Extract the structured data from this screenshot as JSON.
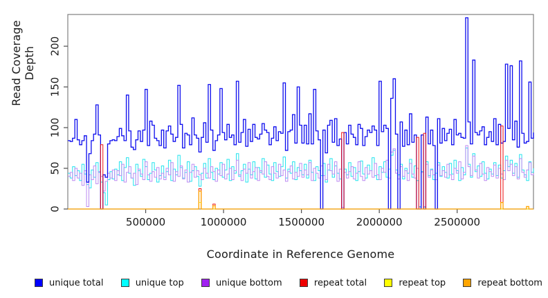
{
  "axes": {
    "xlabel": "Coordinate in Reference Genome",
    "ylabel": "Read Coverage Depth",
    "xticks": [
      {
        "value": 500000,
        "label": "500000"
      },
      {
        "value": 1000000,
        "label": "1000000"
      },
      {
        "value": 1500000,
        "label": "1500000"
      },
      {
        "value": 2000000,
        "label": "2000000"
      },
      {
        "value": 2500000,
        "label": "2500000"
      }
    ],
    "yticks": [
      {
        "value": 0,
        "label": "0"
      },
      {
        "value": 50,
        "label": "50"
      },
      {
        "value": 100,
        "label": "100"
      },
      {
        "value": 150,
        "label": "150"
      },
      {
        "value": 200,
        "label": "200"
      }
    ]
  },
  "legend": {
    "items": [
      {
        "label": "unique total",
        "color": "#0000FF"
      },
      {
        "label": "unique top",
        "color": "#00FFFF"
      },
      {
        "label": "unique bottom",
        "color": "#A020F0"
      },
      {
        "label": "repeat total",
        "color": "#EE0000"
      },
      {
        "label": "repeat top",
        "color": "#FFFF00"
      },
      {
        "label": "repeat bottom",
        "color": "#FFA500"
      }
    ]
  },
  "chart_data": {
    "type": "line",
    "subtype": "step",
    "title": "",
    "xlabel": "Coordinate in Reference Genome",
    "ylabel": "Read Coverage Depth",
    "xlim": [
      0,
      2990000
    ],
    "ylim": [
      0,
      239
    ],
    "grid": false,
    "legend_position": "bottom",
    "x": {
      "start": 0,
      "step": 15000,
      "count": 200
    },
    "series": [
      {
        "name": "unique top",
        "color": "#00FFFF",
        "plot_color": "#21E3EE",
        "width": 1,
        "values": [
          44,
          38,
          52,
          41,
          47,
          35,
          55,
          43,
          30,
          26,
          48,
          39,
          57,
          45,
          33,
          20,
          5,
          36,
          46,
          37,
          49,
          42,
          58,
          35,
          51,
          63,
          44,
          38,
          29,
          55,
          47,
          40,
          61,
          52,
          36,
          44,
          57,
          48,
          33,
          41,
          53,
          39,
          46,
          60,
          35,
          49,
          42,
          66,
          51,
          38,
          45,
          58,
          34,
          47,
          52,
          40,
          28,
          44,
          56,
          38,
          62,
          45,
          36,
          50,
          43,
          57,
          39,
          48,
          61,
          35,
          52,
          44,
          68,
          40,
          47,
          55,
          33,
          49,
          42,
          58,
          37,
          51,
          45,
          62,
          39,
          54,
          43,
          35,
          57,
          46,
          40,
          52,
          64,
          38,
          49,
          44,
          58,
          36,
          51,
          47,
          42,
          55,
          38,
          60,
          45,
          35,
          52,
          47,
          41,
          56,
          33,
          48,
          62,
          39,
          53,
          44,
          37,
          2,
          49,
          42,
          57,
          40,
          51,
          35,
          46,
          59,
          43,
          38,
          54,
          47,
          63,
          41,
          36,
          52,
          45,
          58,
          39,
          49,
          66,
          72,
          48,
          42,
          55,
          37,
          50,
          44,
          61,
          39,
          53,
          35,
          3,
          46,
          2,
          58,
          41,
          49,
          36,
          44,
          57,
          40,
          52,
          45,
          38,
          56,
          43,
          60,
          47,
          35,
          51,
          42,
          75,
          55,
          39,
          68,
          46,
          53,
          40,
          58,
          44,
          37,
          49,
          43,
          57,
          41,
          54,
          38,
          47,
          65,
          52,
          60,
          44,
          56,
          39,
          67,
          48,
          42,
          35,
          58,
          45,
          50
        ]
      },
      {
        "name": "unique bottom",
        "color": "#A020F0",
        "plot_color": "#BC8BF2",
        "width": 1,
        "values": [
          40,
          45,
          35,
          50,
          38,
          44,
          29,
          47,
          3,
          42,
          36,
          53,
          31,
          46,
          40,
          22,
          34,
          44,
          38,
          48,
          35,
          47,
          41,
          55,
          33,
          45,
          52,
          38,
          44,
          30,
          49,
          43,
          36,
          58,
          42,
          34,
          46,
          39,
          51,
          37,
          44,
          36,
          50,
          42,
          57,
          34,
          46,
          40,
          53,
          37,
          48,
          33,
          45,
          55,
          39,
          47,
          42,
          36,
          50,
          44,
          38,
          52,
          46,
          34,
          48,
          41,
          55,
          37,
          43,
          50,
          36,
          47,
          60,
          42,
          35,
          49,
          44,
          57,
          38,
          46,
          51,
          35,
          47,
          43,
          58,
          40,
          36,
          52,
          44,
          38,
          55,
          41,
          48,
          34,
          46,
          53,
          37,
          45,
          40,
          56,
          39,
          48,
          42,
          57,
          35,
          50,
          44,
          38,
          53,
          41,
          36,
          55,
          47,
          43,
          58,
          34,
          49,
          2,
          45,
          38,
          46,
          52,
          37,
          44,
          58,
          40,
          35,
          51,
          43,
          47,
          39,
          56,
          42,
          36,
          50,
          45,
          60,
          38,
          70,
          74,
          44,
          37,
          52,
          40,
          47,
          35,
          56,
          43,
          38,
          50,
          2,
          45,
          3,
          55,
          39,
          48,
          42,
          36,
          54,
          41,
          47,
          39,
          55,
          42,
          36,
          50,
          44,
          58,
          37,
          45,
          78,
          52,
          41,
          65,
          48,
          38,
          56,
          43,
          35,
          51,
          46,
          40,
          54,
          38,
          50,
          43,
          36,
          60,
          47,
          55,
          41,
          52,
          37,
          62,
          45,
          39,
          48,
          57,
          42,
          44
        ]
      },
      {
        "name": "unique total",
        "color": "#0000FF",
        "plot_color": "#0A0AEE",
        "width": 1.3,
        "values": [
          84,
          83,
          87,
          110,
          85,
          79,
          84,
          90,
          33,
          68,
          84,
          92,
          128,
          91,
          0,
          42,
          39,
          80,
          84,
          85,
          84,
          89,
          99,
          90,
          84,
          140,
          96,
          76,
          73,
          85,
          96,
          83,
          97,
          147,
          78,
          108,
          103,
          87,
          84,
          78,
          97,
          75,
          96,
          102,
          92,
          83,
          88,
          152,
          104,
          75,
          93,
          91,
          79,
          112,
          91,
          87,
          70,
          88,
          106,
          82,
          153,
          97,
          72,
          84,
          91,
          148,
          94,
          85,
          104,
          88,
          91,
          79,
          157,
          82,
          94,
          110,
          77,
          98,
          83,
          104,
          88,
          86,
          92,
          105,
          97,
          94,
          79,
          87,
          101,
          84,
          95,
          93,
          155,
          72,
          95,
          97,
          116,
          81,
          150,
          103,
          81,
          103,
          80,
          117,
          80,
          147,
          96,
          85,
          0,
          97,
          69,
          103,
          109,
          82,
          111,
          78,
          86,
          0,
          94,
          80,
          103,
          92,
          88,
          79,
          104,
          99,
          78,
          89,
          97,
          94,
          102,
          97,
          78,
          157,
          95,
          103,
          99,
          0,
          136,
          160,
          92,
          0,
          107,
          77,
          97,
          79,
          117,
          82,
          91,
          0,
          0,
          91,
          0,
          113,
          80,
          97,
          78,
          0,
          111,
          81,
          99,
          84,
          93,
          98,
          79,
          110,
          91,
          93,
          88,
          87,
          235,
          107,
          80,
          183,
          94,
          91,
          96,
          101,
          79,
          88,
          95,
          83,
          111,
          79,
          104,
          81,
          83,
          178,
          99,
          176,
          85,
          108,
          76,
          182,
          93,
          81,
          83,
          156,
          87,
          94
        ]
      },
      {
        "name": "repeat total",
        "color": "#EE0000",
        "plot_color": "#EE1111",
        "width": 1,
        "base": 0,
        "spikes": {
          "14": 79,
          "56": 25,
          "62": 6,
          "117": 94,
          "149": 88,
          "152": 93,
          "185": 102
        }
      },
      {
        "name": "repeat top",
        "color": "#FFFF00",
        "plot_color": "#FFFF00",
        "width": 1,
        "base": 0,
        "spikes": {
          "56": 8
        }
      },
      {
        "name": "repeat bottom",
        "color": "#FFA500",
        "plot_color": "#FFA500",
        "width": 1.3,
        "base": 0,
        "spikes": {
          "56": 22,
          "62": 4,
          "185": 8,
          "196": 3
        }
      }
    ]
  }
}
